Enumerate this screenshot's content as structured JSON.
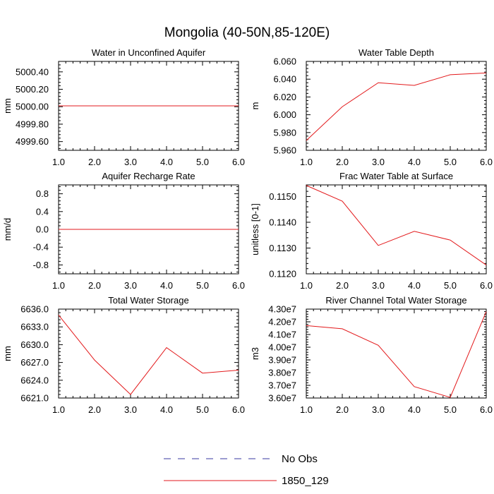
{
  "title": "Mongolia (40-50N,85-120E)",
  "legend": {
    "entries": [
      {
        "label": "No Obs",
        "color": "#3a3aa0",
        "dashed": true
      },
      {
        "label": "1850_129",
        "color": "#e31a1c",
        "dashed": false
      }
    ]
  },
  "chart_data": [
    {
      "type": "line",
      "title": "Water in Unconfined Aquifer",
      "ylabel": "mm",
      "xlabel": "",
      "x": [
        1,
        2,
        3,
        4,
        5,
        6
      ],
      "xlim": [
        1,
        6
      ],
      "xticks": [
        1,
        2,
        3,
        4,
        5,
        6
      ],
      "xtick_labels": [
        "1.0",
        "2.0",
        "3.0",
        "4.0",
        "5.0",
        "6.0"
      ],
      "ylim": [
        4999.5,
        5000.52
      ],
      "yticks": [
        4999.6,
        4999.8,
        5000.0,
        5000.2,
        5000.4
      ],
      "ytick_labels": [
        "4999.60",
        "4999.80",
        "5000.00",
        "5000.20",
        "5000.40"
      ],
      "series": [
        {
          "name": "1850_129",
          "color": "#e31a1c",
          "values": [
            5000.01,
            5000.01,
            5000.01,
            5000.01,
            5000.01,
            5000.01
          ]
        }
      ]
    },
    {
      "type": "line",
      "title": "Water Table Depth",
      "ylabel": "m",
      "xlabel": "",
      "x": [
        1,
        2,
        3,
        4,
        5,
        6
      ],
      "xlim": [
        1,
        6
      ],
      "xticks": [
        1,
        2,
        3,
        4,
        5,
        6
      ],
      "xtick_labels": [
        "1.0",
        "2.0",
        "3.0",
        "4.0",
        "5.0",
        "6.0"
      ],
      "ylim": [
        5.96,
        6.06
      ],
      "yticks": [
        5.96,
        5.98,
        6.0,
        6.02,
        6.04,
        6.06
      ],
      "ytick_labels": [
        "5.960",
        "5.980",
        "6.000",
        "6.020",
        "6.040",
        "6.060"
      ],
      "series": [
        {
          "name": "1850_129",
          "color": "#e31a1c",
          "values": [
            5.971,
            6.009,
            6.036,
            6.033,
            6.045,
            6.047
          ]
        }
      ]
    },
    {
      "type": "line",
      "title": "Aquifer Recharge Rate",
      "ylabel": "mm/d",
      "xlabel": "",
      "x": [
        1,
        2,
        3,
        4,
        5,
        6
      ],
      "xlim": [
        1,
        6
      ],
      "xticks": [
        1,
        2,
        3,
        4,
        5,
        6
      ],
      "xtick_labels": [
        "1.0",
        "2.0",
        "3.0",
        "4.0",
        "5.0",
        "6.0"
      ],
      "ylim": [
        -1.0,
        1.0
      ],
      "yticks": [
        -0.8,
        -0.4,
        0.0,
        0.4,
        0.8
      ],
      "ytick_labels": [
        "-0.8",
        "-0.4",
        "0.0",
        "0.4",
        "0.8"
      ],
      "series": [
        {
          "name": "1850_129",
          "color": "#e31a1c",
          "values": [
            0,
            0,
            0,
            0,
            0,
            0
          ]
        }
      ]
    },
    {
      "type": "line",
      "title": "Frac Water Table at Surface",
      "ylabel": "unitless [0-1]",
      "xlabel": "",
      "x": [
        1,
        2,
        3,
        4,
        5,
        6
      ],
      "xlim": [
        1,
        6
      ],
      "xticks": [
        1,
        2,
        3,
        4,
        5,
        6
      ],
      "xtick_labels": [
        "1.0",
        "2.0",
        "3.0",
        "4.0",
        "5.0",
        "6.0"
      ],
      "ylim": [
        0.112,
        0.11545
      ],
      "yticks": [
        0.112,
        0.113,
        0.114,
        0.115
      ],
      "ytick_labels": [
        "0.1120",
        "0.1130",
        "0.1140",
        "0.1150"
      ],
      "series": [
        {
          "name": "1850_129",
          "color": "#e31a1c",
          "values": [
            0.11543,
            0.11482,
            0.1131,
            0.11365,
            0.11331,
            0.11234
          ]
        }
      ]
    },
    {
      "type": "line",
      "title": "Total Water Storage",
      "ylabel": "mm",
      "xlabel": "",
      "x": [
        1,
        2,
        3,
        4,
        5,
        6
      ],
      "xlim": [
        1,
        6
      ],
      "xticks": [
        1,
        2,
        3,
        4,
        5,
        6
      ],
      "xtick_labels": [
        "1.0",
        "2.0",
        "3.0",
        "4.0",
        "5.0",
        "6.0"
      ],
      "ylim": [
        6621.0,
        6636.0
      ],
      "yticks": [
        6621,
        6624,
        6627,
        6630,
        6633,
        6636
      ],
      "ytick_labels": [
        "6621.0",
        "6624.0",
        "6627.0",
        "6630.0",
        "6633.0",
        "6636.0"
      ],
      "series": [
        {
          "name": "1850_129",
          "color": "#e31a1c",
          "values": [
            6635.0,
            6627.4,
            6621.6,
            6629.5,
            6625.2,
            6625.7
          ]
        }
      ]
    },
    {
      "type": "line",
      "title": "River Channel Total Water Storage",
      "ylabel": "m3",
      "xlabel": "",
      "x": [
        1,
        2,
        3,
        4,
        5,
        6
      ],
      "xlim": [
        1,
        6
      ],
      "xticks": [
        1,
        2,
        3,
        4,
        5,
        6
      ],
      "xtick_labels": [
        "1.0",
        "2.0",
        "3.0",
        "4.0",
        "5.0",
        "6.0"
      ],
      "ylim": [
        36000000,
        43000000
      ],
      "yticks": [
        36000000,
        37000000,
        38000000,
        39000000,
        40000000,
        41000000,
        42000000,
        43000000
      ],
      "ytick_labels": [
        "3.60e7",
        "3.70e7",
        "3.80e7",
        "3.90e7",
        "4.00e7",
        "4.10e7",
        "4.20e7",
        "4.30e7"
      ],
      "series": [
        {
          "name": "1850_129",
          "color": "#e31a1c",
          "values": [
            41700000,
            41450000,
            40150000,
            36900000,
            36050000,
            42800000
          ]
        }
      ]
    }
  ]
}
